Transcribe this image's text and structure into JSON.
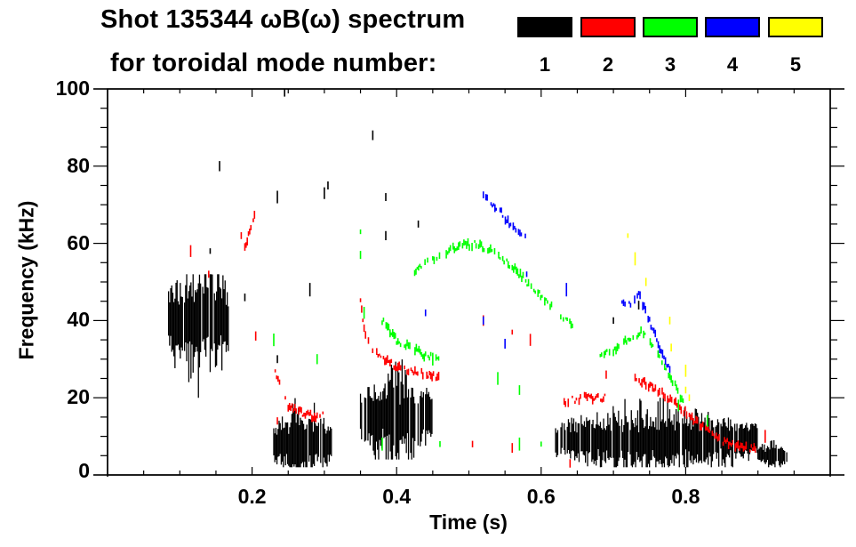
{
  "chart_data": {
    "type": "scatter",
    "title": "Shot 135344 ωB(ω) spectrum",
    "subtitle": "for toroidal mode number:",
    "xlabel": "Time (s)",
    "ylabel": "Frequency (kHz)",
    "xlim": [
      0.0,
      1.0
    ],
    "ylim": [
      0,
      100
    ],
    "xticks": [
      0.2,
      0.4,
      0.6,
      0.8
    ],
    "xtick_labels": [
      "0.2",
      "0.4",
      "0.6",
      "0.8"
    ],
    "x_minor_step": 0.05,
    "yticks": [
      0,
      20,
      40,
      60,
      80,
      100
    ],
    "ytick_labels": [
      "0",
      "20",
      "40",
      "60",
      "80",
      "100"
    ],
    "y_minor_step": 5,
    "grid": false,
    "legend": {
      "placement": "top-right",
      "entries": [
        {
          "label": "1",
          "color": "#000000"
        },
        {
          "label": "2",
          "color": "#ff0000"
        },
        {
          "label": "3",
          "color": "#00ff00"
        },
        {
          "label": "4",
          "color": "#0000ff"
        },
        {
          "label": "5",
          "color": "#ffff00"
        }
      ]
    },
    "series": [
      {
        "name": "n=1",
        "color": "#000000",
        "regions": [
          {
            "label": "early-burst",
            "t": [
              0.08,
              0.17
            ],
            "f": [
              20,
              52
            ],
            "center_f": 40
          },
          {
            "label": "sawtooth-band-1",
            "t": [
              0.23,
              0.31
            ],
            "f": [
              2,
              22
            ],
            "center_f": 8
          },
          {
            "label": "band-2",
            "t": [
              0.35,
              0.45
            ],
            "f": [
              4,
              30
            ],
            "center_f": 15
          },
          {
            "label": "late-band",
            "t": [
              0.62,
              0.9
            ],
            "f": [
              2,
              20
            ],
            "center_f": 9
          },
          {
            "label": "end-burst",
            "t": [
              0.9,
              0.94
            ],
            "f": [
              2,
              9
            ],
            "center_f": 5
          }
        ],
        "points": [
          [
            0.305,
            75
          ],
          [
            0.3,
            73
          ],
          [
            0.385,
            72
          ],
          [
            0.385,
            62
          ],
          [
            0.19,
            46
          ],
          [
            0.142,
            58
          ],
          [
            0.235,
            72
          ],
          [
            0.235,
            30
          ],
          [
            0.28,
            48
          ],
          [
            0.155,
            80
          ],
          [
            0.245,
            99
          ],
          [
            0.367,
            88
          ],
          [
            0.43,
            65
          ],
          [
            0.7,
            40
          ],
          [
            0.735,
            44
          ]
        ]
      },
      {
        "name": "n=2",
        "color": "#ff0000",
        "traces": [
          [
            [
              0.19,
              59
            ],
            [
              0.195,
              62
            ],
            [
              0.2,
              66
            ],
            [
              0.205,
              68
            ]
          ],
          [
            [
              0.232,
              27
            ],
            [
              0.24,
              22
            ],
            [
              0.25,
              18
            ],
            [
              0.27,
              16
            ],
            [
              0.29,
              15
            ],
            [
              0.3,
              17
            ]
          ],
          [
            [
              0.35,
              45
            ],
            [
              0.355,
              38
            ],
            [
              0.365,
              33
            ],
            [
              0.38,
              30
            ],
            [
              0.4,
              28
            ],
            [
              0.42,
              27
            ],
            [
              0.44,
              26
            ],
            [
              0.46,
              25
            ]
          ],
          [
            [
              0.63,
              19
            ],
            [
              0.66,
              20
            ],
            [
              0.69,
              20
            ]
          ],
          [
            [
              0.73,
              25
            ],
            [
              0.76,
              22
            ],
            [
              0.79,
              18
            ],
            [
              0.82,
              13
            ],
            [
              0.85,
              9
            ],
            [
              0.88,
              7
            ],
            [
              0.9,
              7
            ]
          ]
        ],
        "points": [
          [
            0.115,
            58
          ],
          [
            0.14,
            52
          ],
          [
            0.185,
            62
          ],
          [
            0.52,
            40
          ],
          [
            0.56,
            37
          ],
          [
            0.585,
            35
          ],
          [
            0.235,
            14
          ],
          [
            0.505,
            8
          ],
          [
            0.56,
            7
          ],
          [
            0.64,
            3
          ],
          [
            0.205,
            36
          ],
          [
            0.91,
            10
          ],
          [
            0.69,
            26
          ]
        ]
      },
      {
        "name": "n=3",
        "color": "#00ff00",
        "traces": [
          [
            [
              0.425,
              53
            ],
            [
              0.45,
              56
            ],
            [
              0.48,
              59
            ],
            [
              0.51,
              60
            ],
            [
              0.53,
              58
            ],
            [
              0.56,
              54
            ],
            [
              0.59,
              48
            ],
            [
              0.62,
              43
            ],
            [
              0.645,
              38
            ]
          ],
          [
            [
              0.38,
              40
            ],
            [
              0.4,
              35
            ],
            [
              0.42,
              33
            ],
            [
              0.44,
              31
            ],
            [
              0.46,
              30
            ]
          ],
          [
            [
              0.68,
              31
            ],
            [
              0.7,
              32
            ],
            [
              0.72,
              35
            ],
            [
              0.74,
              37
            ],
            [
              0.76,
              32
            ],
            [
              0.78,
              25
            ],
            [
              0.8,
              18
            ]
          ]
        ],
        "points": [
          [
            0.35,
            63
          ],
          [
            0.35,
            57
          ],
          [
            0.355,
            42
          ],
          [
            0.29,
            30
          ],
          [
            0.23,
            35
          ],
          [
            0.45,
            30
          ],
          [
            0.54,
            25
          ],
          [
            0.57,
            22
          ],
          [
            0.38,
            8
          ],
          [
            0.46,
            8
          ],
          [
            0.57,
            8
          ],
          [
            0.6,
            8
          ],
          [
            0.83,
            14
          ],
          [
            0.79,
            18
          ]
        ]
      },
      {
        "name": "n=4",
        "color": "#0000ff",
        "traces": [
          [
            [
              0.52,
              72
            ],
            [
              0.545,
              68
            ],
            [
              0.565,
              63
            ],
            [
              0.58,
              61
            ]
          ],
          [
            [
              0.71,
              45
            ],
            [
              0.72,
              44
            ],
            [
              0.735,
              47
            ],
            [
              0.75,
              40
            ],
            [
              0.76,
              35
            ],
            [
              0.77,
              30
            ],
            [
              0.78,
              26
            ]
          ]
        ],
        "points": [
          [
            0.58,
            52
          ],
          [
            0.44,
            42
          ],
          [
            0.52,
            40
          ],
          [
            0.55,
            34
          ],
          [
            0.635,
            48
          ]
        ]
      },
      {
        "name": "n=5",
        "color": "#ffff00",
        "points": [
          [
            0.72,
            62
          ],
          [
            0.73,
            56
          ],
          [
            0.745,
            50
          ],
          [
            0.778,
            40
          ],
          [
            0.78,
            33
          ],
          [
            0.8,
            22
          ],
          [
            0.805,
            20
          ],
          [
            0.8,
            27
          ]
        ]
      }
    ]
  }
}
